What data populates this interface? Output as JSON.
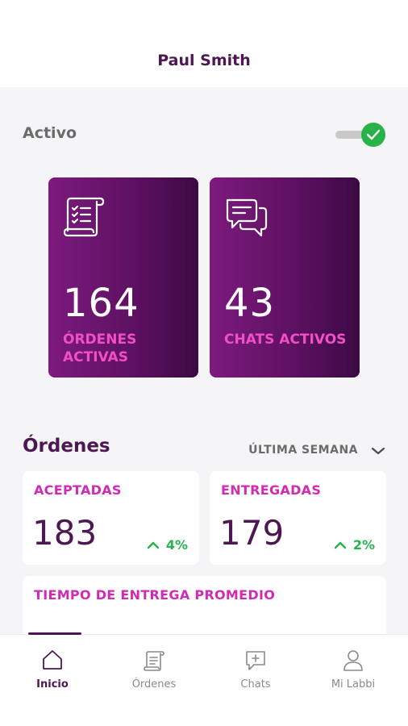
{
  "header": {
    "user_name": "Paul Smith"
  },
  "status": {
    "label": "Activo",
    "enabled": true
  },
  "stats": [
    {
      "icon": "receipt-list-icon",
      "value": "164",
      "label": "ÓRDENES ACTIVAS"
    },
    {
      "icon": "chat-bubbles-icon",
      "value": "43",
      "label": "CHATS ACTIVOS"
    }
  ],
  "orders": {
    "title": "Órdenes",
    "period": "ÚLTIMA SEMANA",
    "metrics": [
      {
        "label": "ACEPTADAS",
        "value": "183",
        "trend": "4%"
      },
      {
        "label": "ENTREGADAS",
        "value": "179",
        "trend": "2%"
      }
    ],
    "delivery_time_label": "TIEMPO DE ENTREGA PROMEDIO"
  },
  "tabs": [
    {
      "label": "Inicio",
      "icon": "home-icon",
      "active": true
    },
    {
      "label": "Órdenes",
      "icon": "receipt-icon",
      "active": false
    },
    {
      "label": "Chats",
      "icon": "chat-add-icon",
      "active": false
    },
    {
      "label": "Mi Labbi",
      "icon": "user-icon",
      "active": false
    }
  ],
  "colors": {
    "brand": "#4d1752",
    "accent": "#d12bb4",
    "success": "#27b24a"
  }
}
